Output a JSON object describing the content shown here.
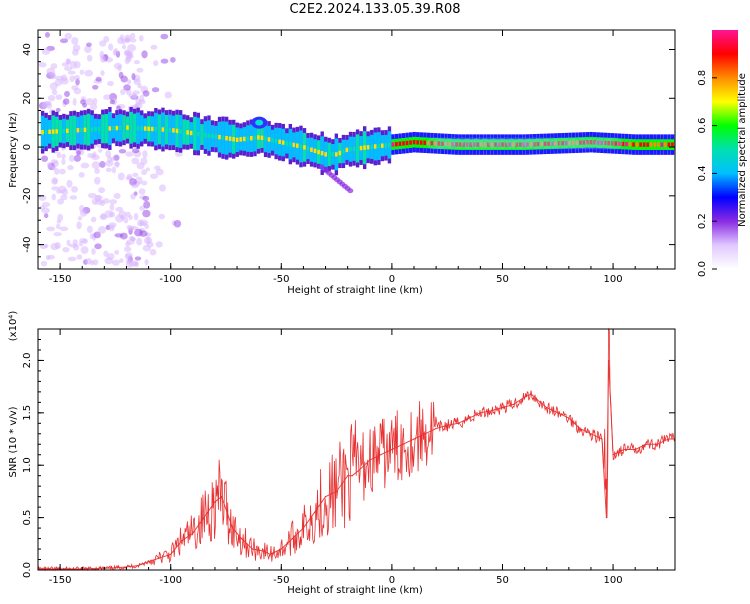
{
  "title": "C2E2.2024.133.05.39.R08",
  "colors": {
    "snr_line": "#e83030",
    "axis": "#000000",
    "colormap": [
      "#ffffff",
      "#e0c8ff",
      "#8a2be2",
      "#0000ff",
      "#00bfff",
      "#00e0b0",
      "#00ff00",
      "#ffff00",
      "#ff8c00",
      "#ff0000",
      "#ff1493"
    ]
  },
  "chart_data": [
    {
      "type": "heatmap",
      "xlabel": "Height of straight line (km)",
      "ylabel": "Frequency (Hz)",
      "xlim": [
        -160,
        128
      ],
      "ylim": [
        -50,
        48
      ],
      "xticks": [
        "-150",
        "-100",
        "-50",
        "0",
        "50",
        "100"
      ],
      "yticks": [
        "40",
        "20",
        "0",
        "-20",
        "-40"
      ],
      "colorbar": {
        "label": "Normalized spectral amplitude",
        "range": [
          0,
          1
        ],
        "ticks": [
          "0.0",
          "0.2",
          "0.4",
          "0.6",
          "0.8"
        ]
      },
      "ridge": {
        "x": [
          -160,
          -140,
          -120,
          -100,
          -85,
          -70,
          -60,
          -50,
          -40,
          -30,
          -25,
          -20,
          -10,
          0,
          10,
          30,
          60,
          90,
          110,
          128
        ],
        "freq": [
          6,
          7,
          8,
          7,
          5,
          3,
          4,
          2,
          0,
          -3,
          -3,
          -1,
          0,
          1,
          2,
          1,
          1,
          2,
          1,
          1
        ]
      }
    },
    {
      "type": "line",
      "xlabel": "Height of straight line (km)",
      "ylabel": "SNR (10 * v/v)",
      "yunit": "(x10⁴)",
      "xlim": [
        -160,
        128
      ],
      "ylim": [
        0,
        2.3
      ],
      "xticks": [
        "-150",
        "-100",
        "-50",
        "0",
        "50",
        "100"
      ],
      "yticks": [
        "0.0",
        "0.5",
        "1.0",
        "1.5",
        "2.0"
      ],
      "series": [
        {
          "x": [
            -160,
            -140,
            -125,
            -115,
            -110,
            -100,
            -95,
            -90,
            -85,
            -80,
            -77,
            -72,
            -68,
            -63,
            -58,
            -55,
            -50,
            -45,
            -40,
            -35,
            -30,
            -25,
            -20,
            -18,
            -15,
            -10,
            -5,
            0,
            5,
            10,
            15,
            20,
            25,
            30,
            35,
            40,
            45,
            50,
            55,
            60,
            63,
            67,
            70,
            75,
            80,
            85,
            90,
            95,
            97,
            98,
            100,
            105,
            110,
            115,
            120,
            125,
            128
          ],
          "y": [
            0.01,
            0.01,
            0.02,
            0.04,
            0.08,
            0.15,
            0.28,
            0.35,
            0.5,
            0.65,
            0.7,
            0.4,
            0.3,
            0.2,
            0.18,
            0.15,
            0.2,
            0.3,
            0.4,
            0.55,
            0.7,
            0.75,
            0.9,
            0.9,
            0.95,
            1.05,
            1.1,
            1.15,
            1.2,
            1.25,
            1.3,
            1.35,
            1.38,
            1.4,
            1.45,
            1.5,
            1.52,
            1.55,
            1.58,
            1.65,
            1.68,
            1.6,
            1.55,
            1.5,
            1.45,
            1.35,
            1.3,
            1.25,
            0.5,
            2.0,
            1.1,
            1.15,
            1.15,
            1.2,
            1.2,
            1.25,
            1.25
          ]
        }
      ]
    }
  ]
}
